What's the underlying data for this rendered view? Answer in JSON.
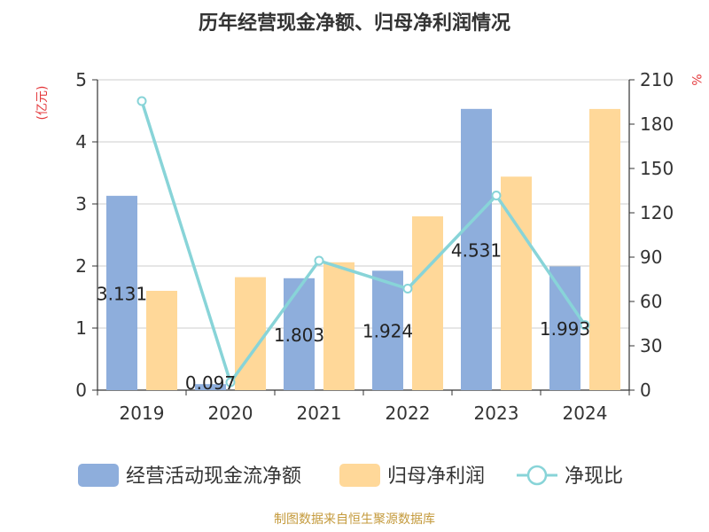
{
  "chart_data": {
    "type": "bar",
    "title": "历年经营现金净额、归母净利润情况",
    "y_left_unit": "(亿元)",
    "y_right_unit": "%",
    "categories": [
      "2019",
      "2020",
      "2021",
      "2022",
      "2023",
      "2024"
    ],
    "y_left_lim": [
      0,
      5
    ],
    "y_left_ticks": [
      0,
      1,
      2,
      3,
      4,
      5
    ],
    "y_right_lim": [
      0,
      210
    ],
    "y_right_ticks": [
      0,
      30,
      60,
      90,
      120,
      150,
      180,
      210
    ],
    "grid": true,
    "legend_position": "bottom",
    "series": [
      {
        "name": "经营活动现金流净额",
        "type": "bar",
        "axis": "left",
        "color": "#8EAEDC",
        "values": [
          3.131,
          0.097,
          1.803,
          1.924,
          4.531,
          1.993
        ],
        "labels": [
          "3.131",
          "0.097",
          "1.803",
          "1.924",
          "4.531",
          "1.993"
        ]
      },
      {
        "name": "归母净利润",
        "type": "bar",
        "axis": "left",
        "color": "#FFD899",
        "values": [
          1.6,
          1.82,
          2.06,
          2.8,
          3.44,
          4.53
        ]
      },
      {
        "name": "净现比",
        "type": "line",
        "axis": "right",
        "color": "#88D4D8",
        "values": [
          195.6,
          5.3,
          87.6,
          68.7,
          131.7,
          44.0
        ]
      }
    ]
  },
  "source": "制图数据来自恒生聚源数据库"
}
